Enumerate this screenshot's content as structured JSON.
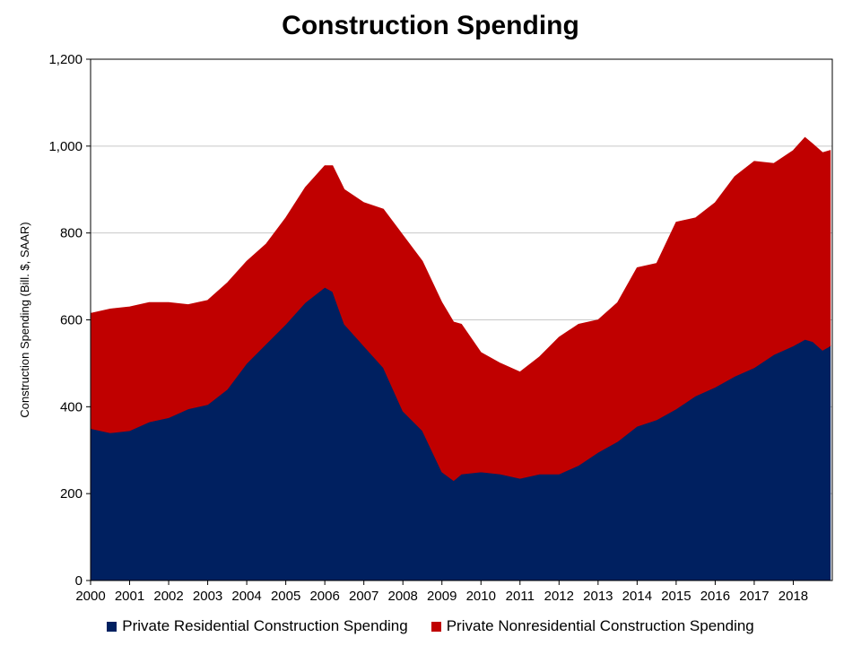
{
  "chart_data": {
    "type": "area",
    "stacked": true,
    "title": "Construction Spending",
    "ylabel": "Construction Spending (Bill. $, SAAR)",
    "xlabel": "",
    "ylim": [
      0,
      1200
    ],
    "xlim": [
      2000.0,
      2019.0
    ],
    "y_ticks": [
      0,
      200,
      400,
      600,
      800,
      1000,
      1200
    ],
    "y_tick_labels": [
      "0",
      "200",
      "400",
      "600",
      "800",
      "1,000",
      "1,200"
    ],
    "x_ticks": [
      2000,
      2001,
      2002,
      2003,
      2004,
      2005,
      2006,
      2007,
      2008,
      2009,
      2010,
      2011,
      2012,
      2013,
      2014,
      2015,
      2016,
      2017,
      2018
    ],
    "x_tick_labels": [
      "2000",
      "2001",
      "2002",
      "2003",
      "2004",
      "2005",
      "2006",
      "2007",
      "2008",
      "2009",
      "2010",
      "2011",
      "2012",
      "2013",
      "2014",
      "2015",
      "2016",
      "2017",
      "2018"
    ],
    "grid": "horizontal",
    "legend_position": "bottom",
    "x": [
      2000.0,
      2000.5,
      2001.0,
      2001.5,
      2002.0,
      2002.5,
      2003.0,
      2003.5,
      2004.0,
      2004.5,
      2005.0,
      2005.5,
      2006.0,
      2006.2,
      2006.5,
      2007.0,
      2007.5,
      2008.0,
      2008.5,
      2009.0,
      2009.3,
      2009.5,
      2010.0,
      2010.5,
      2011.0,
      2011.5,
      2012.0,
      2012.5,
      2013.0,
      2013.5,
      2014.0,
      2014.5,
      2015.0,
      2015.5,
      2016.0,
      2016.5,
      2017.0,
      2017.5,
      2018.0,
      2018.3,
      2018.5,
      2018.75,
      2018.95
    ],
    "series": [
      {
        "name": "Private Residential Construction Spending",
        "color": "#002060",
        "values": [
          350,
          340,
          345,
          365,
          375,
          395,
          405,
          440,
          500,
          545,
          590,
          640,
          675,
          665,
          590,
          540,
          490,
          390,
          345,
          250,
          230,
          245,
          250,
          245,
          235,
          245,
          245,
          265,
          295,
          320,
          355,
          370,
          395,
          425,
          445,
          470,
          490,
          520,
          540,
          555,
          550,
          530,
          540
        ]
      },
      {
        "name": "Private Nonresidential Construction Spending",
        "color": "#C00000",
        "values": [
          265,
          285,
          285,
          275,
          265,
          240,
          240,
          245,
          235,
          230,
          245,
          265,
          280,
          290,
          310,
          330,
          365,
          405,
          390,
          390,
          365,
          345,
          275,
          255,
          245,
          270,
          315,
          325,
          305,
          320,
          365,
          360,
          430,
          410,
          425,
          460,
          475,
          440,
          450,
          465,
          455,
          455,
          450
        ]
      }
    ]
  }
}
